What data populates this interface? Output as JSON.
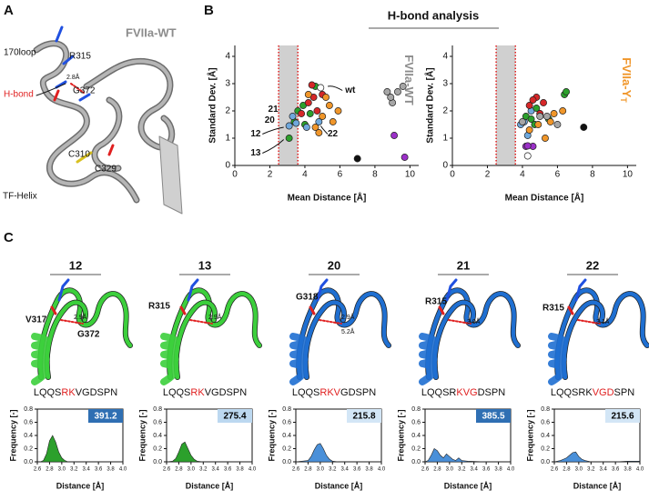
{
  "panel_letters": [
    "A",
    "B",
    "C"
  ],
  "structure_a": {
    "title": "FVIIa-WT",
    "labels": [
      "170loop",
      "R315",
      "2.8Å",
      "G372",
      "C310",
      "C329",
      "TF-Helix"
    ],
    "hbond_label": "H-bond"
  },
  "section_title": "H-bond analysis",
  "chart_data": [
    {
      "type": "scatter",
      "xlabel": "Mean Distance [Å]",
      "ylabel": "Standard Dev. [Å]",
      "side_label": "FVIIa-WT",
      "side_label_color": "#8c8c8c",
      "xlim": [
        0,
        10.5
      ],
      "ylim": [
        0,
        4.4
      ],
      "xticks": [
        0,
        2,
        4,
        6,
        8,
        10
      ],
      "yticks": [
        0,
        1,
        2,
        3,
        4
      ],
      "band": [
        2.5,
        3.6
      ],
      "x": [
        3.1,
        3.4,
        3.6,
        3.9,
        4.3,
        4.6,
        4.0,
        3.1,
        3.5,
        4.1,
        3.3,
        4.8,
        3.8,
        4.2,
        4.5,
        4.7,
        4.4,
        5.0,
        4.2,
        4.6,
        5.0,
        5.4,
        5.6,
        5.2,
        4.8,
        5.9,
        8.7,
        9.0,
        9.3,
        9.6,
        8.9,
        9.1,
        9.7,
        7.0,
        4.9
      ],
      "values": [
        1.0,
        1.6,
        2.0,
        2.2,
        1.9,
        2.9,
        1.5,
        1.45,
        1.55,
        1.4,
        1.8,
        1.6,
        1.9,
        2.3,
        2.5,
        2.0,
        2.95,
        2.6,
        2.6,
        1.4,
        1.8,
        2.2,
        1.6,
        2.5,
        1.2,
        2.0,
        2.7,
        2.3,
        2.7,
        2.9,
        2.5,
        1.1,
        0.3,
        0.25,
        2.85
      ],
      "colors": [
        "#2ca02c",
        "#2ca02c",
        "#2ca02c",
        "#2ca02c",
        "#2ca02c",
        "#2ca02c",
        "#2ca02c",
        "#6fa8dc",
        "#6fa8dc",
        "#6fa8dc",
        "#6fa8dc",
        "#6fa8dc",
        "#d62728",
        "#d62728",
        "#d62728",
        "#d62728",
        "#d62728",
        "#d62728",
        "#f0962a",
        "#f0962a",
        "#f0962a",
        "#f0962a",
        "#f0962a",
        "#f0962a",
        "#f0962a",
        "#f0962a",
        "#a6a6a6",
        "#a6a6a6",
        "#a6a6a6",
        "#a6a6a6",
        "#a6a6a6",
        "#9b30c8",
        "#9b30c8",
        "#111111",
        "#ffffff"
      ],
      "annotations": [
        "wt",
        "21",
        "20",
        "12",
        "13",
        "22"
      ]
    },
    {
      "type": "scatter",
      "xlabel": "Mean Distance [Å]",
      "ylabel": "Standard Dev. [Å]",
      "side_label": "FVIIa-Y",
      "side_label_sub": "T",
      "side_label_color": "#f0962a",
      "xlim": [
        0,
        10.5
      ],
      "ylim": [
        0,
        4.4
      ],
      "xticks": [
        0,
        2,
        4,
        6,
        8,
        10
      ],
      "yticks": [
        0,
        1,
        2,
        3,
        4
      ],
      "band": [
        2.5,
        3.6
      ],
      "x": [
        3.9,
        4.1,
        4.3,
        4.5,
        4.2,
        4.5,
        4.8,
        5.5,
        6.4,
        6.5,
        4.7,
        4.4,
        4.8,
        5.2,
        5.0,
        4.6,
        4.9,
        5.3,
        5.6,
        6.3,
        5.8,
        4.4,
        5.0,
        5.4,
        6.0,
        4.0,
        4.2,
        4.6,
        4.3,
        7.5,
        4.3
      ],
      "values": [
        1.5,
        1.6,
        1.1,
        2.0,
        1.8,
        1.7,
        2.1,
        1.7,
        2.6,
        2.7,
        1.5,
        2.2,
        2.5,
        2.3,
        1.9,
        2.4,
        1.5,
        1.0,
        1.6,
        2.0,
        1.9,
        1.3,
        1.8,
        1.8,
        1.5,
        1.6,
        0.7,
        0.7,
        0.72,
        1.4,
        0.35
      ],
      "colors": [
        "#6fa8dc",
        "#6fa8dc",
        "#6fa8dc",
        "#6fa8dc",
        "#2ca02c",
        "#2ca02c",
        "#2ca02c",
        "#2ca02c",
        "#2ca02c",
        "#2ca02c",
        "#2ca02c",
        "#d62728",
        "#d62728",
        "#d62728",
        "#d62728",
        "#d62728",
        "#f0962a",
        "#f0962a",
        "#f0962a",
        "#f0962a",
        "#f0962a",
        "#f0962a",
        "#a6a6a6",
        "#a6a6a6",
        "#a6a6a6",
        "#a6a6a6",
        "#9b30c8",
        "#9b30c8",
        "#9b30c8",
        "#111111",
        "#ffffff"
      ]
    },
    {
      "type": "area",
      "xlabel": "Distance [Å]",
      "ylabel": "Frequency [-]",
      "color": "#2ca02c",
      "count": 391.2,
      "box_color": "#2f6fb3",
      "box_text_color": "#ffffff",
      "xlim": [
        2.6,
        4.0
      ],
      "ylim": [
        0,
        0.8
      ],
      "xticks": [
        2.6,
        2.8,
        {
          "value": 3,
          "label": "3.0"
        },
        3.2,
        3.4,
        3.6,
        3.8,
        {
          "value": 4,
          "label": "4.0"
        }
      ],
      "yticks": [
        {
          "value": 0,
          "label": "0.0"
        },
        0.2,
        0.4,
        0.6,
        0.8
      ],
      "x": [
        2.6,
        2.65,
        2.7,
        2.75,
        2.8,
        2.85,
        2.9,
        2.95,
        3.0,
        3.05,
        3.1,
        3.2,
        3.4,
        3.6,
        3.8,
        4.0
      ],
      "values": [
        0,
        0,
        0.02,
        0.12,
        0.32,
        0.4,
        0.3,
        0.15,
        0.06,
        0.02,
        0,
        0,
        0,
        0,
        0,
        0
      ]
    },
    {
      "type": "area",
      "xlabel": "Distance [Å]",
      "ylabel": "Frequency [-]",
      "color": "#2ca02c",
      "count": 275.4,
      "box_color": "#bcd8f0",
      "box_text_color": "#000000",
      "xlim": [
        2.6,
        4.0
      ],
      "ylim": [
        0,
        0.8
      ],
      "xticks": [
        2.6,
        2.8,
        {
          "value": 3,
          "label": "3.0"
        },
        3.2,
        3.4,
        3.6,
        3.8,
        {
          "value": 4,
          "label": "4.0"
        }
      ],
      "yticks": [
        {
          "value": 0,
          "label": "0.0"
        },
        0.2,
        0.4,
        0.6,
        0.8
      ],
      "x": [
        2.6,
        2.7,
        2.75,
        2.8,
        2.85,
        2.9,
        2.95,
        3.0,
        3.05,
        3.1,
        3.2,
        3.4,
        3.6,
        3.8,
        4.0
      ],
      "values": [
        0,
        0.01,
        0.05,
        0.15,
        0.27,
        0.3,
        0.2,
        0.1,
        0.04,
        0.01,
        0,
        0,
        0,
        0,
        0
      ]
    },
    {
      "type": "area",
      "xlabel": "Distance [Å]",
      "ylabel": "Frequency [-]",
      "color": "#4a90d9",
      "count": 215.8,
      "box_color": "#d3e6f6",
      "box_text_color": "#000000",
      "xlim": [
        2.6,
        4.0
      ],
      "ylim": [
        0,
        0.8
      ],
      "xticks": [
        2.6,
        2.8,
        {
          "value": 3,
          "label": "3.0"
        },
        3.2,
        3.4,
        3.6,
        3.8,
        {
          "value": 4,
          "label": "4.0"
        }
      ],
      "yticks": [
        {
          "value": 0,
          "label": "0.0"
        },
        0.2,
        0.4,
        0.6,
        0.8
      ],
      "x": [
        2.6,
        2.8,
        2.85,
        2.9,
        2.95,
        3.0,
        3.05,
        3.1,
        3.15,
        3.2,
        3.3,
        3.4,
        3.6,
        3.8,
        4.0
      ],
      "values": [
        0,
        0.02,
        0.08,
        0.18,
        0.26,
        0.28,
        0.2,
        0.1,
        0.04,
        0.01,
        0,
        0,
        0,
        0,
        0
      ]
    },
    {
      "type": "area",
      "xlabel": "Distance [Å]",
      "ylabel": "Frequency [-]",
      "color": "#4a90d9",
      "count": 385.5,
      "box_color": "#2f6fb3",
      "box_text_color": "#ffffff",
      "xlim": [
        2.6,
        4.0
      ],
      "ylim": [
        0,
        0.8
      ],
      "xticks": [
        2.6,
        2.8,
        {
          "value": 3,
          "label": "3.0"
        },
        3.2,
        3.4,
        3.6,
        3.8,
        {
          "value": 4,
          "label": "4.0"
        }
      ],
      "yticks": [
        {
          "value": 0,
          "label": "0.0"
        },
        0.2,
        0.4,
        0.6,
        0.8
      ],
      "x": [
        2.6,
        2.65,
        2.7,
        2.75,
        2.8,
        2.85,
        2.9,
        2.95,
        3.0,
        3.05,
        3.1,
        3.15,
        3.2,
        3.3,
        3.6,
        4.0
      ],
      "values": [
        0,
        0.02,
        0.1,
        0.2,
        0.17,
        0.1,
        0.06,
        0.12,
        0.08,
        0.04,
        0.02,
        0.06,
        0.02,
        0.01,
        0,
        0
      ]
    },
    {
      "type": "area",
      "xlabel": "Distance [Å]",
      "ylabel": "Frequency [-]",
      "color": "#4a90d9",
      "count": 215.6,
      "box_color": "#d3e6f6",
      "box_text_color": "#000000",
      "xlim": [
        2.6,
        4.0
      ],
      "ylim": [
        0,
        0.8
      ],
      "xticks": [
        2.6,
        2.8,
        {
          "value": 3,
          "label": "3.0"
        },
        3.2,
        3.4,
        3.6,
        3.8,
        {
          "value": 4,
          "label": "4.0"
        }
      ],
      "yticks": [
        {
          "value": 0,
          "label": "0.0"
        },
        0.2,
        0.4,
        0.6,
        0.8
      ],
      "x": [
        2.6,
        2.7,
        2.75,
        2.8,
        2.85,
        2.9,
        2.95,
        3.0,
        3.05,
        3.1,
        3.2,
        3.4,
        3.6,
        3.8,
        4.0
      ],
      "values": [
        0,
        0.02,
        0.04,
        0.06,
        0.1,
        0.14,
        0.15,
        0.08,
        0.04,
        0.02,
        0,
        0,
        0,
        0.01,
        0.01
      ]
    }
  ],
  "structures_c": [
    {
      "id": "12",
      "color": "#3ccf3c",
      "labels": [
        "V317",
        "2.9Å",
        "G372"
      ],
      "sequence": [
        "LQQS",
        "RK",
        "VGDSPN"
      ]
    },
    {
      "id": "13",
      "color": "#3ccf3c",
      "labels": [
        "R315",
        "2.9Å"
      ],
      "sequence": [
        "LQQS",
        "RK",
        "VGDSPN"
      ]
    },
    {
      "id": "20",
      "color": "#1f6fd1",
      "labels": [
        "G318",
        "2.9Å",
        "5.2Å"
      ],
      "sequence": [
        "LQQS",
        "RKV",
        "GDSPN"
      ]
    },
    {
      "id": "21",
      "color": "#1f6fd1",
      "labels": [
        "R315",
        "3.0Å"
      ],
      "sequence": [
        "LQQSR",
        "KVG",
        "DSPN"
      ]
    },
    {
      "id": "22",
      "color": "#1f6fd1",
      "labels": [
        "R315",
        "3.1Å"
      ],
      "sequence": [
        "LQQSRK",
        "VGD",
        "SPN"
      ]
    }
  ],
  "sequence_highlight_color": "#e02020"
}
